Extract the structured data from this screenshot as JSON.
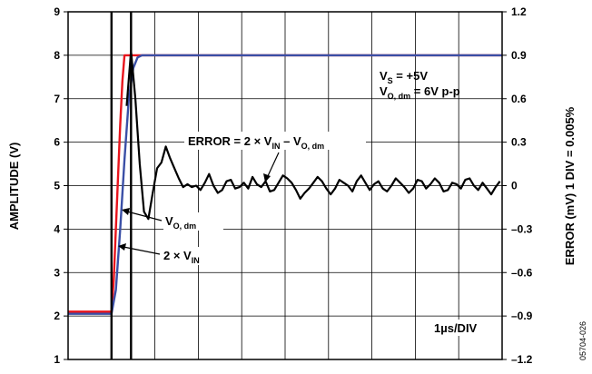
{
  "chart_data": {
    "type": "line",
    "title": "",
    "xlabel": "",
    "ylabel_left": "AMPLITUDE (V)",
    "ylabel_right": "ERROR (mV) 1 DIV = 0.005%",
    "ylim_left": [
      1,
      9
    ],
    "ylim_right": [
      -1.2,
      1.2
    ],
    "y_ticks_left": [
      "1",
      "2",
      "3",
      "4",
      "5",
      "6",
      "7",
      "8",
      "9"
    ],
    "y_ticks_right": [
      "1.2",
      "0.9",
      "0.6",
      "0.3",
      "0",
      "–0.3",
      "–0.6",
      "–0.9",
      "–1.2"
    ],
    "x_unit_label": "1µs/DIV",
    "x_divisions": 10,
    "grid": true,
    "cursor_divisions": [
      1,
      1.45
    ],
    "conditions": [
      "V_S = +5V",
      "V_O, dm = 6V p-p"
    ],
    "figure_id": "05704-026",
    "annotations": {
      "error": {
        "lhs": "ERROR = 2 × V",
        "sub1": "IN",
        "mid": " – V",
        "sub2": "O, dm"
      },
      "vodm": {
        "main": "V",
        "sub": "O, dm"
      },
      "vin": {
        "main": "2 × V",
        "sub": "IN"
      },
      "vs": {
        "main": "V",
        "sub": "S",
        "rest": " = +5V"
      },
      "vo": {
        "main": "V",
        "sub": "O, dm",
        "rest": " = 6V p-p"
      }
    },
    "series": [
      {
        "name": "2 × V_IN",
        "color": "#e8141c",
        "axis": "left",
        "x_div": [
          0,
          1.0,
          1.05,
          1.1,
          1.15,
          1.2,
          1.25,
          1.3,
          1.35,
          10
        ],
        "values": [
          2.1,
          2.1,
          2.8,
          4.0,
          5.2,
          6.4,
          7.4,
          8.0,
          8.0,
          8.0
        ]
      },
      {
        "name": "V_O, dm",
        "color": "#3a4fa6",
        "axis": "left",
        "x_div": [
          0,
          1.0,
          1.1,
          1.2,
          1.3,
          1.4,
          1.5,
          1.6,
          1.7,
          2.0,
          10
        ],
        "values": [
          2.05,
          2.05,
          2.6,
          4.0,
          5.6,
          7.0,
          7.7,
          7.95,
          8.0,
          8.0,
          8.0
        ]
      },
      {
        "name": "ERROR",
        "color": "#000000",
        "axis": "right",
        "x_div": [
          1.35,
          1.45,
          1.55,
          1.65,
          1.75,
          1.85,
          1.95,
          2.05,
          2.15,
          2.25,
          2.35,
          2.45,
          2.55,
          2.65,
          2.75,
          2.85,
          2.95,
          3.05,
          3.15,
          3.25,
          3.35,
          3.45,
          3.55,
          3.65,
          3.75,
          3.85,
          3.95,
          4.05,
          4.15,
          4.25,
          4.35,
          4.45,
          4.55,
          4.65,
          4.75,
          4.85,
          4.95,
          5.05,
          5.15,
          5.25,
          5.35,
          5.45,
          5.55,
          5.65,
          5.75,
          5.85,
          5.95,
          6.05,
          6.15,
          6.25,
          6.35,
          6.45,
          6.55,
          6.65,
          6.75,
          6.85,
          6.95,
          7.05,
          7.15,
          7.25,
          7.35,
          7.45,
          7.55,
          7.65,
          7.75,
          7.85,
          7.95,
          8.05,
          8.15,
          8.25,
          8.35,
          8.45,
          8.55,
          8.65,
          8.75,
          8.85,
          8.95,
          9.05,
          9.15,
          9.25,
          9.35,
          9.45,
          9.55,
          9.65,
          9.75,
          9.85,
          9.95
        ],
        "values": [
          0.55,
          0.93,
          0.6,
          0.15,
          -0.18,
          -0.23,
          -0.05,
          0.12,
          0.16,
          0.27,
          0.19,
          0.12,
          0.05,
          -0.01,
          0.01,
          -0.01,
          0.0,
          -0.03,
          0.02,
          0.08,
          0.0,
          -0.05,
          -0.03,
          0.03,
          0.04,
          -0.02,
          -0.01,
          0.02,
          -0.02,
          0.06,
          0.01,
          -0.01,
          0.03,
          -0.04,
          -0.03,
          0.02,
          0.07,
          0.05,
          0.02,
          -0.03,
          -0.09,
          -0.05,
          -0.02,
          0.02,
          0.06,
          0.03,
          -0.02,
          -0.06,
          -0.02,
          0.04,
          0.02,
          0.0,
          -0.04,
          0.03,
          0.07,
          0.02,
          -0.03,
          0.01,
          0.03,
          -0.02,
          -0.04,
          0.0,
          0.05,
          0.02,
          -0.01,
          -0.05,
          -0.02,
          0.04,
          0.03,
          -0.02,
          0.01,
          0.05,
          0.02,
          -0.04,
          -0.03,
          0.02,
          0.01,
          -0.02,
          0.04,
          0.05,
          0.0,
          -0.03,
          0.02,
          -0.02,
          -0.06,
          -0.01,
          0.03
        ]
      }
    ]
  }
}
